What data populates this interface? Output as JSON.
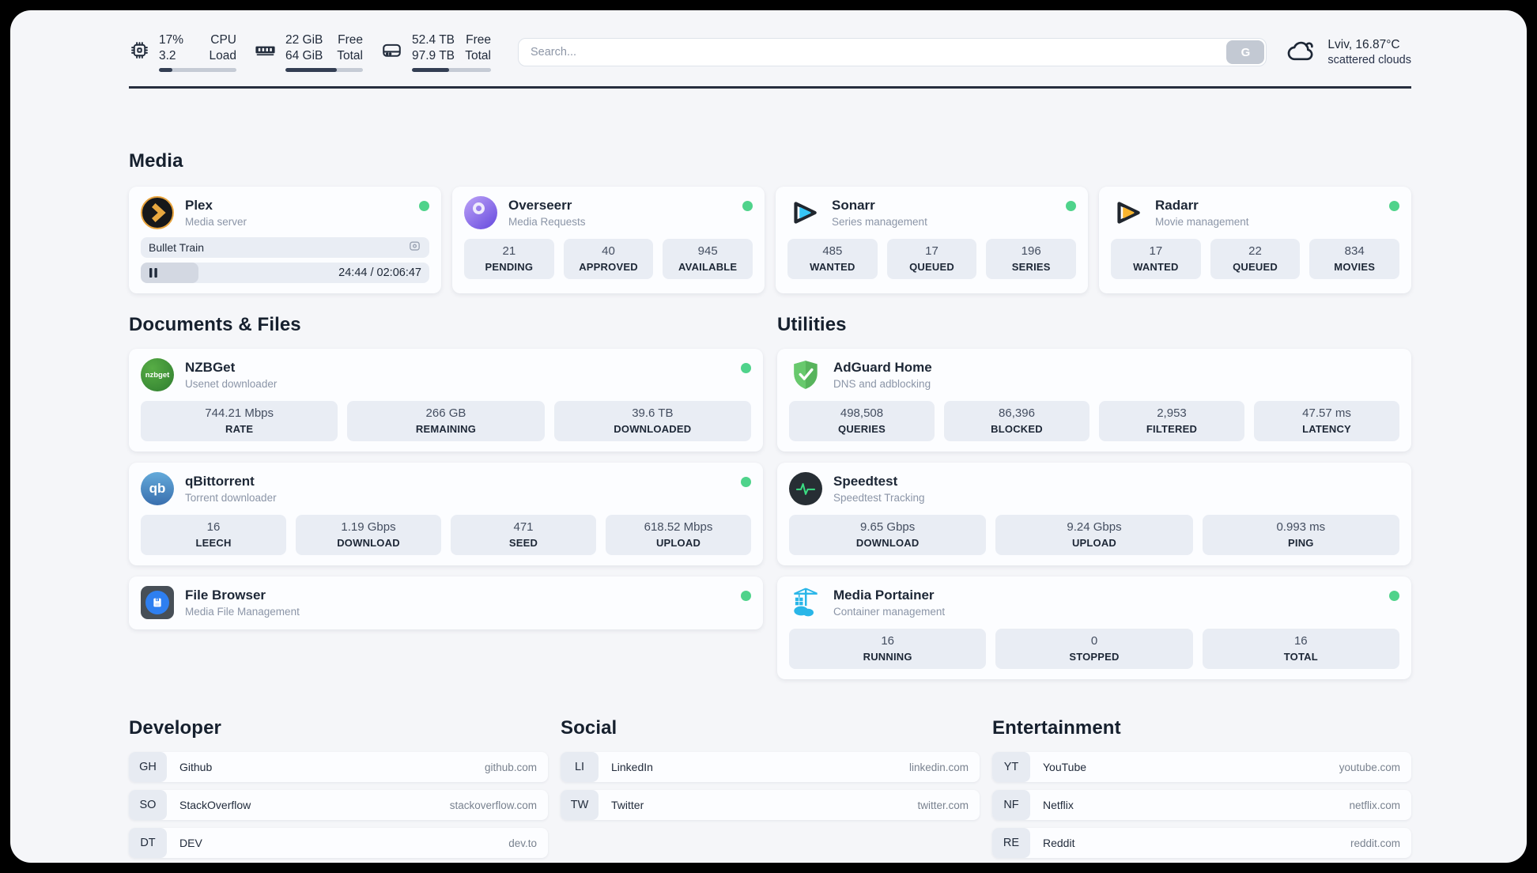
{
  "topbar": {
    "cpu": {
      "rows": [
        {
          "value": "17%",
          "label": "CPU"
        },
        {
          "value": "3.2",
          "label": "Load"
        }
      ],
      "progress_pct": 17
    },
    "memory": {
      "rows": [
        {
          "value": "22 GiB",
          "label": "Free"
        },
        {
          "value": "64 GiB",
          "label": "Total"
        }
      ],
      "progress_pct": 66
    },
    "storage": {
      "rows": [
        {
          "value": "52.4 TB",
          "label": "Free"
        },
        {
          "value": "97.9 TB",
          "label": "Total"
        }
      ],
      "progress_pct": 47
    },
    "search": {
      "placeholder": "Search...",
      "button_label": "G"
    },
    "weather": {
      "location_temperature": "Lviv, 16.87°C",
      "condition": "scattered clouds"
    }
  },
  "media": {
    "heading": "Media",
    "plex": {
      "name": "Plex",
      "description": "Media server",
      "now_playing": "Bullet Train",
      "time_display": "24:44 / 02:06:47",
      "progress_pct": 20
    },
    "overseerr": {
      "name": "Overseerr",
      "description": "Media Requests",
      "stats": [
        {
          "value": "21",
          "label": "PENDING"
        },
        {
          "value": "40",
          "label": "APPROVED"
        },
        {
          "value": "945",
          "label": "AVAILABLE"
        }
      ]
    },
    "sonarr": {
      "name": "Sonarr",
      "description": "Series management",
      "stats": [
        {
          "value": "485",
          "label": "WANTED"
        },
        {
          "value": "17",
          "label": "QUEUED"
        },
        {
          "value": "196",
          "label": "SERIES"
        }
      ]
    },
    "radarr": {
      "name": "Radarr",
      "description": "Movie management",
      "stats": [
        {
          "value": "17",
          "label": "WANTED"
        },
        {
          "value": "22",
          "label": "QUEUED"
        },
        {
          "value": "834",
          "label": "MOVIES"
        }
      ]
    }
  },
  "documents": {
    "heading": "Documents & Files",
    "nzbget": {
      "name": "NZBGet",
      "description": "Usenet downloader",
      "icon_text": "nzbget",
      "stats": [
        {
          "value": "744.21 Mbps",
          "label": "RATE"
        },
        {
          "value": "266 GB",
          "label": "REMAINING"
        },
        {
          "value": "39.6 TB",
          "label": "DOWNLOADED"
        }
      ]
    },
    "qbittorrent": {
      "name": "qBittorrent",
      "description": "Torrent downloader",
      "icon_text": "qb",
      "stats": [
        {
          "value": "16",
          "label": "LEECH"
        },
        {
          "value": "1.19 Gbps",
          "label": "DOWNLOAD"
        },
        {
          "value": "471",
          "label": "SEED"
        },
        {
          "value": "618.52 Mbps",
          "label": "UPLOAD"
        }
      ]
    },
    "filebrowser": {
      "name": "File Browser",
      "description": "Media File Management"
    }
  },
  "utilities": {
    "heading": "Utilities",
    "adguard": {
      "name": "AdGuard Home",
      "description": "DNS and adblocking",
      "stats": [
        {
          "value": "498,508",
          "label": "QUERIES"
        },
        {
          "value": "86,396",
          "label": "BLOCKED"
        },
        {
          "value": "2,953",
          "label": "FILTERED"
        },
        {
          "value": "47.57 ms",
          "label": "LATENCY"
        }
      ]
    },
    "speedtest": {
      "name": "Speedtest",
      "description": "Speedtest Tracking",
      "stats": [
        {
          "value": "9.65 Gbps",
          "label": "DOWNLOAD"
        },
        {
          "value": "9.24 Gbps",
          "label": "UPLOAD"
        },
        {
          "value": "0.993 ms",
          "label": "PING"
        }
      ]
    },
    "portainer": {
      "name": "Media Portainer",
      "description": "Container management",
      "stats": [
        {
          "value": "16",
          "label": "RUNNING"
        },
        {
          "value": "0",
          "label": "STOPPED"
        },
        {
          "value": "16",
          "label": "TOTAL"
        }
      ]
    }
  },
  "bookmarks": {
    "developer": {
      "heading": "Developer",
      "links": [
        {
          "abbr": "GH",
          "name": "Github",
          "url": "github.com"
        },
        {
          "abbr": "SO",
          "name": "StackOverflow",
          "url": "stackoverflow.com"
        },
        {
          "abbr": "DT",
          "name": "DEV",
          "url": "dev.to"
        }
      ]
    },
    "social": {
      "heading": "Social",
      "links": [
        {
          "abbr": "LI",
          "name": "LinkedIn",
          "url": "linkedin.com"
        },
        {
          "abbr": "TW",
          "name": "Twitter",
          "url": "twitter.com"
        }
      ]
    },
    "entertainment": {
      "heading": "Entertainment",
      "links": [
        {
          "abbr": "YT",
          "name": "YouTube",
          "url": "youtube.com"
        },
        {
          "abbr": "NF",
          "name": "Netflix",
          "url": "netflix.com"
        },
        {
          "abbr": "RE",
          "name": "Reddit",
          "url": "reddit.com"
        }
      ]
    }
  },
  "colors": {
    "status_online": "#4fd38b",
    "accent_dark": "#222c3c",
    "stat_tile_bg": "#e9edf4"
  }
}
